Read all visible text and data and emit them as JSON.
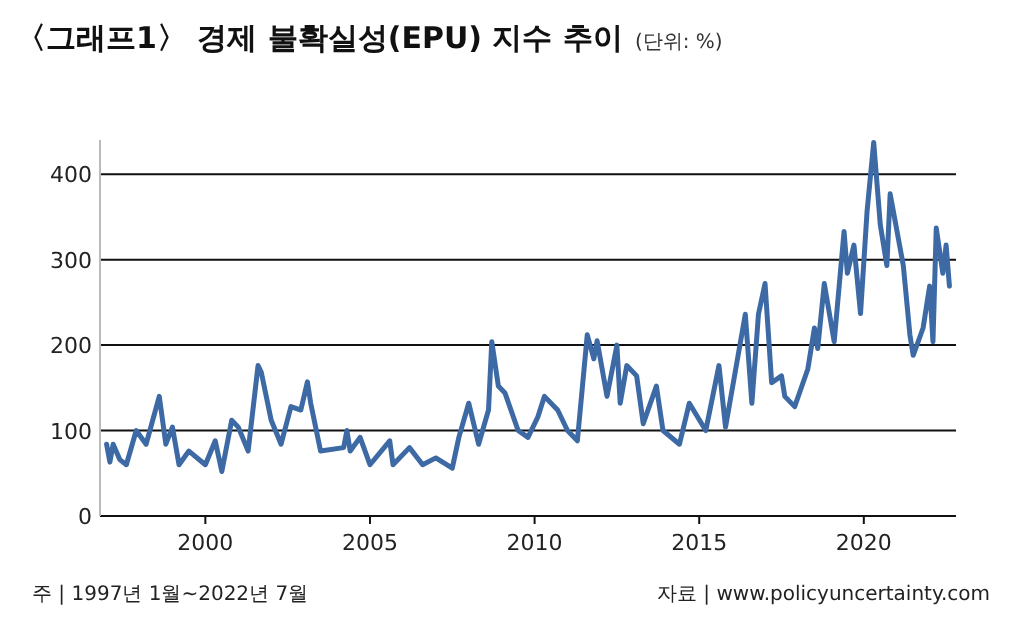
{
  "chart_data": {
    "type": "line",
    "title": "〈그래프1〉 경제 불확실성(EPU) 지수 추이",
    "subtitle": "(단위: %)",
    "annotations": [
      "주 | 1997년 1월~2022년 7월",
      "자료 | www.policyuncertainty.com"
    ],
    "x": [
      1997.0,
      1997.1,
      1997.2,
      1997.4,
      1997.6,
      1997.9,
      1998.2,
      1998.6,
      1998.8,
      1999.0,
      1999.2,
      1999.5,
      2000.0,
      2000.3,
      2000.5,
      2000.8,
      2001.0,
      2001.3,
      2001.6,
      2001.7,
      2002.0,
      2002.3,
      2002.6,
      2002.9,
      2003.1,
      2003.2,
      2003.5,
      2004.2,
      2004.3,
      2004.4,
      2004.7,
      2005.0,
      2005.6,
      2005.7,
      2006.2,
      2006.6,
      2007.0,
      2007.5,
      2007.7,
      2008.0,
      2008.3,
      2008.6,
      2008.7,
      2008.9,
      2009.1,
      2009.5,
      2009.8,
      2010.1,
      2010.3,
      2010.7,
      2011.0,
      2011.3,
      2011.6,
      2011.8,
      2011.9,
      2012.2,
      2012.5,
      2012.6,
      2012.8,
      2013.1,
      2013.3,
      2013.7,
      2013.9,
      2014.4,
      2014.7,
      2015.2,
      2015.6,
      2015.8,
      2016.4,
      2016.6,
      2016.8,
      2017.0,
      2017.2,
      2017.5,
      2017.6,
      2017.9,
      2018.3,
      2018.5,
      2018.6,
      2018.8,
      2019.1,
      2019.4,
      2019.5,
      2019.7,
      2019.9,
      2020.1,
      2020.3,
      2020.5,
      2020.7,
      2020.8,
      2021.2,
      2021.4,
      2021.5,
      2021.8,
      2022.0,
      2022.1,
      2022.2,
      2022.4,
      2022.5,
      2022.6
    ],
    "series": [
      {
        "color": "#3d6aa5",
        "values": [
          84,
          63,
          84,
          66,
          60,
          100,
          84,
          140,
          84,
          104,
          60,
          76,
          60,
          88,
          52,
          112,
          104,
          76,
          176,
          168,
          112,
          84,
          128,
          124,
          157,
          132,
          76,
          80,
          100,
          76,
          92,
          60,
          88,
          60,
          80,
          60,
          68,
          56,
          92,
          132,
          84,
          124,
          204,
          152,
          144,
          100,
          92,
          116,
          140,
          124,
          100,
          88,
          212,
          184,
          205,
          140,
          200,
          132,
          176,
          164,
          108,
          152,
          100,
          84,
          132,
          100,
          176,
          104,
          236,
          132,
          236,
          272,
          156,
          164,
          140,
          128,
          172,
          220,
          196,
          272,
          204,
          333,
          284,
          317,
          237,
          357,
          437,
          341,
          293,
          377,
          293,
          212,
          188,
          220,
          269,
          204,
          337,
          284,
          317,
          269
        ]
      }
    ],
    "xlim": [
      1996.8,
      2022.8
    ],
    "ylim": [
      0,
      440
    ],
    "xticks": [
      2000,
      2005,
      2010,
      2015,
      2020
    ],
    "yticks": [
      0,
      100,
      200,
      300,
      400
    ],
    "grid": "y",
    "marker": "none",
    "line_style": "solid"
  }
}
